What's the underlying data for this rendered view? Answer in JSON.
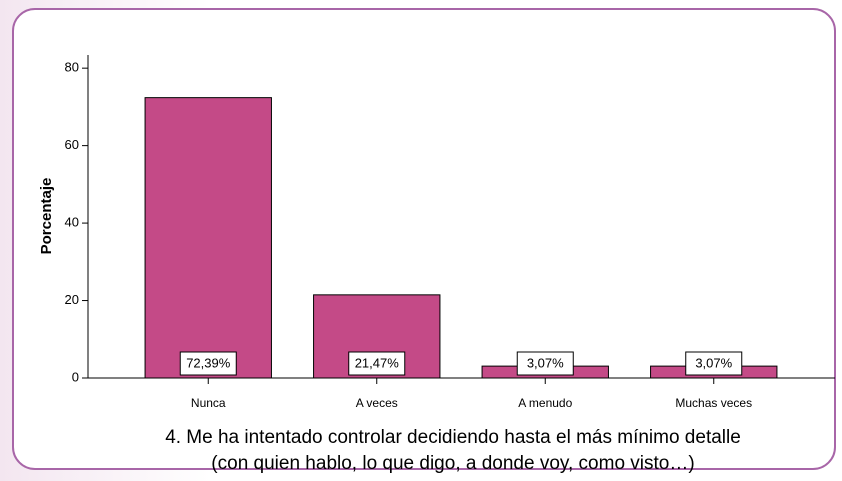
{
  "chart_data": {
    "type": "bar",
    "ylabel": "Porcentaje",
    "xlabel": [
      "4. Me ha intentado controlar decidiendo hasta el más mínimo detalle",
      "(con quien hablo, lo que digo, a donde voy, como visto…)"
    ],
    "categories": [
      "Nunca",
      "A veces",
      "A menudo",
      "Muchas veces"
    ],
    "values": [
      72.39,
      21.47,
      3.07,
      3.07
    ],
    "value_labels": [
      "72,39%",
      "21,47%",
      "3,07%",
      "3,07%"
    ],
    "color": "#c44a87",
    "ylim": [
      0,
      83.4
    ],
    "yticks": [
      0,
      20,
      40,
      60,
      80
    ],
    "grid": false
  }
}
